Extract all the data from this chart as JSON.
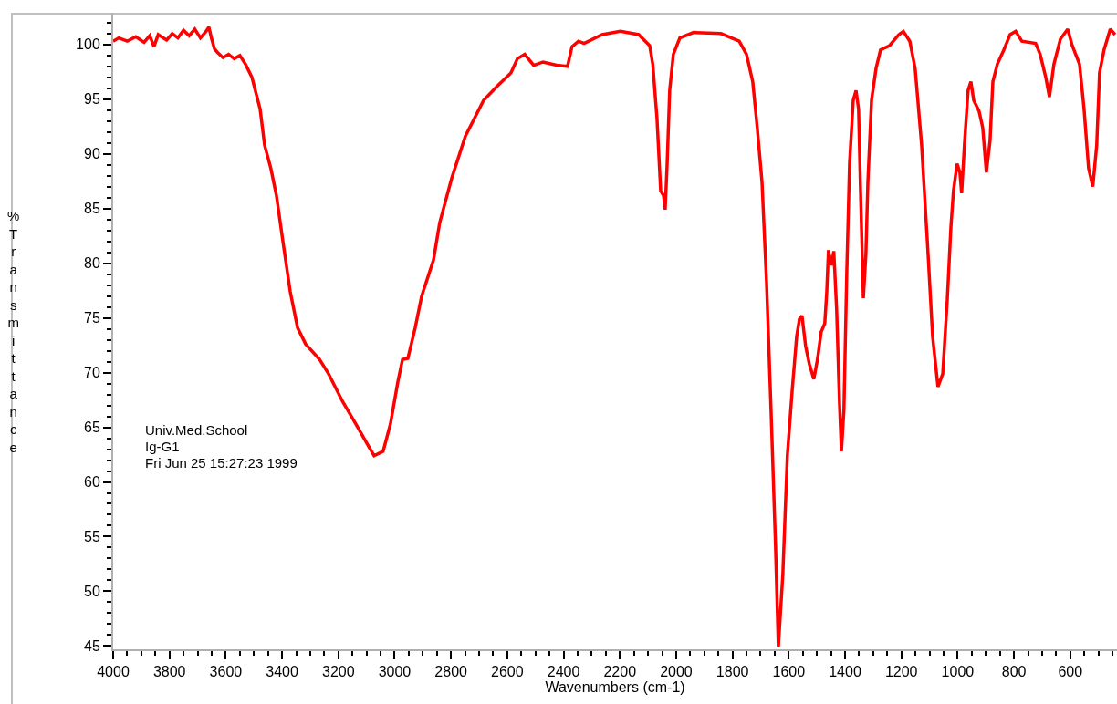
{
  "chart_data": {
    "type": "line",
    "xlabel": "Wavenumbers (cm-1)",
    "ylabel": "%Transmittance",
    "annotations": [
      "Univ.Med.School",
      "Ig-G1",
      "Fri Jun 25 15:27:23 1999"
    ],
    "xlim": [
      4000,
      434
    ],
    "ylim": [
      44.7,
      102.9
    ],
    "xticks": [
      4000,
      3800,
      3600,
      3400,
      3200,
      3000,
      2800,
      2600,
      2400,
      2200,
      2000,
      1800,
      1600,
      1400,
      1200,
      1000,
      800,
      600
    ],
    "yticks": [
      45,
      50,
      55,
      60,
      65,
      70,
      75,
      80,
      85,
      90,
      95,
      100
    ],
    "marker": "none",
    "line_style": "solid",
    "series": [
      {
        "color": "#ff0000",
        "x": [
          4000,
          3980,
          3950,
          3920,
          3890,
          3870,
          3855,
          3840,
          3810,
          3790,
          3770,
          3750,
          3730,
          3710,
          3690,
          3670,
          3660,
          3650,
          3640,
          3630,
          3610,
          3590,
          3570,
          3550,
          3530,
          3507,
          3478,
          3462,
          3440,
          3420,
          3397,
          3371,
          3345,
          3316,
          3267,
          3235,
          3186,
          3138,
          3089,
          3073,
          3041,
          3015,
          2989,
          2972,
          2953,
          2927,
          2904,
          2862,
          2840,
          2797,
          2749,
          2684,
          2635,
          2587,
          2564,
          2538,
          2506,
          2473,
          2425,
          2386,
          2370,
          2347,
          2327,
          2263,
          2198,
          2133,
          2094,
          2083,
          2068,
          2055,
          2045,
          2039,
          2032,
          2023,
          2010,
          1987,
          1938,
          1841,
          1776,
          1750,
          1728,
          1712,
          1695,
          1679,
          1663,
          1647,
          1637,
          1621,
          1605,
          1588,
          1572,
          1562,
          1553,
          1540,
          1527,
          1511,
          1498,
          1485,
          1472,
          1465,
          1459,
          1449,
          1440,
          1430,
          1420,
          1413,
          1404,
          1394,
          1384,
          1371,
          1361,
          1352,
          1345,
          1335,
          1326,
          1319,
          1306,
          1290,
          1274,
          1242,
          1209,
          1193,
          1170,
          1151,
          1128,
          1105,
          1089,
          1070,
          1053,
          1037,
          1024,
          1015,
          1002,
          992,
          986,
          976,
          963,
          953,
          943,
          924,
          911,
          898,
          885,
          875,
          859,
          836,
          814,
          794,
          772,
          723,
          707,
          687,
          674,
          658,
          635,
          609,
          593,
          567,
          551,
          535,
          520,
          506,
          496,
          480,
          458,
          441
        ],
        "values": [
          100.3,
          100.6,
          100.3,
          100.7,
          100.2,
          100.8,
          99.8,
          100.9,
          100.4,
          101,
          100.6,
          101.3,
          100.8,
          101.4,
          100.6,
          101.2,
          101.6,
          100.5,
          99.6,
          99.3,
          98.8,
          99.1,
          98.7,
          99,
          98.2,
          97,
          94.1,
          90.8,
          88.7,
          86.2,
          82,
          77.4,
          74.1,
          72.6,
          71.2,
          69.9,
          67.4,
          65.3,
          63.1,
          62.4,
          62.8,
          65.3,
          69.1,
          71.2,
          71.3,
          74.1,
          77,
          80.3,
          83.7,
          87.8,
          91.6,
          94.9,
          96.2,
          97.4,
          98.7,
          99.1,
          98.1,
          98.4,
          98.1,
          98,
          99.8,
          100.3,
          100.1,
          100.9,
          101.2,
          100.9,
          99.9,
          98.2,
          93.2,
          86.6,
          86.2,
          84.9,
          89.1,
          95.8,
          99.1,
          100.6,
          101.1,
          101,
          100.3,
          99.1,
          96.6,
          92.4,
          87.4,
          78.3,
          66.6,
          54.1,
          44.9,
          51.6,
          62.4,
          68.3,
          73.3,
          74.9,
          75.2,
          72.4,
          70.8,
          69.4,
          71.2,
          73.7,
          74.5,
          77.4,
          81.2,
          79.8,
          81.1,
          75.8,
          67.4,
          62.8,
          66.6,
          79.1,
          89.1,
          94.9,
          95.8,
          94.1,
          86.6,
          76.8,
          80.8,
          87.4,
          94.9,
          97.8,
          99.5,
          99.9,
          100.9,
          101.2,
          100.3,
          97.8,
          90.8,
          80.8,
          73.3,
          68.7,
          69.9,
          76.6,
          83.3,
          86.6,
          89.1,
          88.3,
          86.4,
          90.8,
          95.8,
          96.6,
          94.9,
          93.9,
          92.4,
          88.3,
          91.2,
          96.6,
          98.2,
          99.5,
          100.9,
          101.2,
          100.3,
          100.1,
          99.1,
          97,
          95.2,
          98.2,
          100.5,
          101.4,
          99.9,
          98.2,
          94.1,
          88.7,
          87,
          90.8,
          97.4,
          99.5,
          101.4,
          100.9
        ]
      }
    ]
  }
}
